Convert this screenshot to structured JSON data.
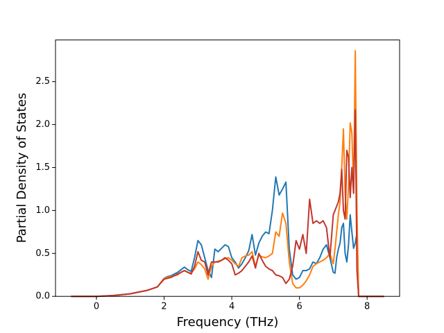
{
  "chart_data": {
    "type": "line",
    "xlabel": "Frequency (THz)",
    "ylabel": "Partial Density of States",
    "xlim": [
      -1.21,
      8.96
    ],
    "ylim": [
      0,
      2.985
    ],
    "xticks": [
      0,
      2,
      4,
      6,
      8
    ],
    "yticks": [
      {
        "value": 0,
        "label": "0.0"
      },
      0.5,
      {
        "value": 1,
        "label": "1.0"
      },
      1.5,
      {
        "value": 2,
        "label": "2.0"
      },
      2.5
    ],
    "grid": false,
    "x": [
      -0.75,
      -0.5,
      0,
      0.5,
      1,
      1.5,
      1.8,
      2.0,
      2.1,
      2.2,
      2.3,
      2.4,
      2.5,
      2.6,
      2.7,
      2.8,
      2.9,
      3.0,
      3.1,
      3.2,
      3.3,
      3.4,
      3.5,
      3.6,
      3.7,
      3.8,
      3.9,
      4.0,
      4.1,
      4.2,
      4.3,
      4.4,
      4.5,
      4.6,
      4.7,
      4.8,
      4.9,
      5.0,
      5.1,
      5.2,
      5.3,
      5.4,
      5.5,
      5.6,
      5.7,
      5.8,
      5.9,
      6.0,
      6.1,
      6.2,
      6.3,
      6.4,
      6.5,
      6.6,
      6.7,
      6.8,
      6.9,
      7.0,
      7.05,
      7.1,
      7.15,
      7.2,
      7.25,
      7.3,
      7.35,
      7.4,
      7.45,
      7.5,
      7.55,
      7.6,
      7.65,
      7.7,
      7.75,
      7.8,
      8.5
    ],
    "series": [
      {
        "color": "#1f77b4",
        "values": [
          0,
          0,
          0,
          0.01,
          0.03,
          0.07,
          0.11,
          0.21,
          0.23,
          0.24,
          0.26,
          0.28,
          0.31,
          0.34,
          0.31,
          0.29,
          0.45,
          0.65,
          0.6,
          0.45,
          0.3,
          0.22,
          0.55,
          0.52,
          0.56,
          0.6,
          0.58,
          0.45,
          0.4,
          0.33,
          0.38,
          0.45,
          0.53,
          0.72,
          0.48,
          0.62,
          0.7,
          0.75,
          0.73,
          1.0,
          1.39,
          1.18,
          1.25,
          1.33,
          0.55,
          0.25,
          0.2,
          0.22,
          0.3,
          0.3,
          0.32,
          0.4,
          0.38,
          0.45,
          0.55,
          0.6,
          0.45,
          0.28,
          0.27,
          0.45,
          0.55,
          0.62,
          0.8,
          0.85,
          0.5,
          0.4,
          0.6,
          0.95,
          0.75,
          0.56,
          0.62,
          0.74,
          0,
          0,
          0
        ]
      },
      {
        "color": "#ff7f0e",
        "values": [
          0,
          0,
          0,
          0.01,
          0.03,
          0.07,
          0.11,
          0.21,
          0.22,
          0.23,
          0.24,
          0.25,
          0.28,
          0.3,
          0.28,
          0.27,
          0.32,
          0.4,
          0.37,
          0.32,
          0.2,
          0.35,
          0.4,
          0.41,
          0.42,
          0.44,
          0.45,
          0.42,
          0.38,
          0.35,
          0.45,
          0.47,
          0.48,
          0.52,
          0.35,
          0.48,
          0.46,
          0.45,
          0.47,
          0.5,
          0.75,
          0.7,
          0.97,
          0.85,
          0.4,
          0.15,
          0.1,
          0.1,
          0.13,
          0.18,
          0.25,
          0.35,
          0.38,
          0.4,
          0.42,
          0.45,
          0.5,
          0.38,
          0.55,
          0.75,
          0.95,
          1.1,
          1.5,
          1.95,
          1.2,
          0.9,
          1.3,
          2.02,
          1.9,
          1.2,
          2.86,
          1.0,
          0,
          0,
          0
        ]
      },
      {
        "color": "#c1352b",
        "values": [
          0,
          0,
          0,
          0.01,
          0.03,
          0.07,
          0.11,
          0.2,
          0.21,
          0.22,
          0.24,
          0.26,
          0.28,
          0.3,
          0.28,
          0.26,
          0.35,
          0.52,
          0.42,
          0.4,
          0.25,
          0.4,
          0.4,
          0.4,
          0.42,
          0.45,
          0.42,
          0.38,
          0.25,
          0.27,
          0.3,
          0.35,
          0.4,
          0.47,
          0.33,
          0.5,
          0.42,
          0.35,
          0.32,
          0.3,
          0.25,
          0.24,
          0.22,
          0.15,
          0.2,
          0.35,
          0.65,
          0.55,
          0.72,
          0.5,
          1.13,
          0.85,
          0.88,
          0.85,
          0.88,
          0.8,
          0.45,
          0.95,
          1.0,
          1.05,
          1.1,
          1.2,
          1.48,
          1.0,
          0.9,
          1.7,
          1.62,
          1.15,
          1.5,
          1.2,
          2.17,
          0.3,
          0,
          0,
          0
        ]
      }
    ]
  }
}
